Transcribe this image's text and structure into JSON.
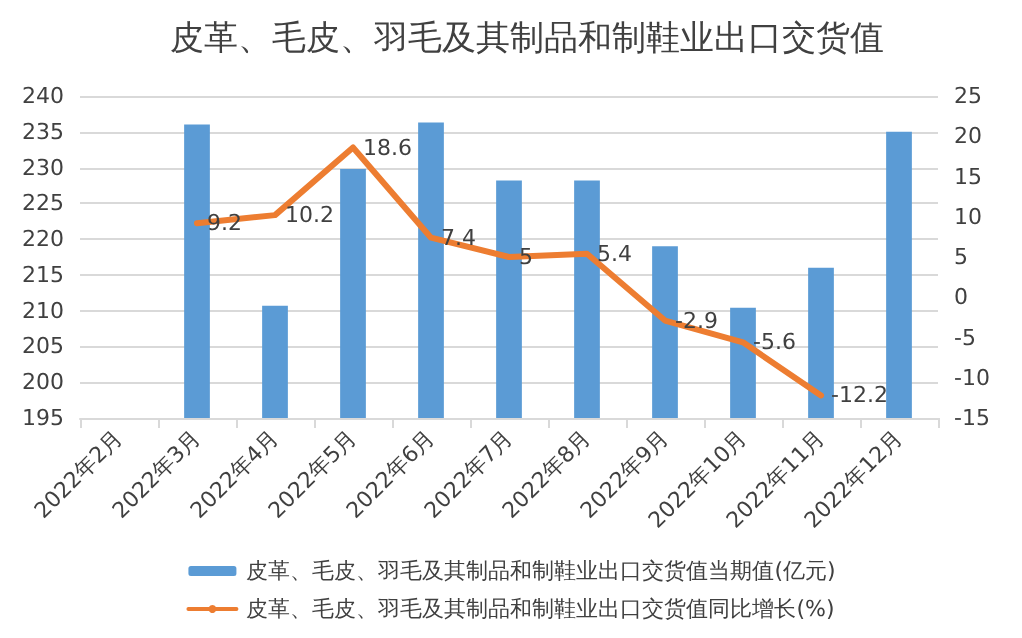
{
  "chart_data": {
    "type": "bar",
    "title": "皮革、毛皮、羽毛及其制品和制鞋业出口交货值",
    "categories": [
      "2022年2月",
      "2022年3月",
      "2022年4月",
      "2022年5月",
      "2022年6月",
      "2022年7月",
      "2022年8月",
      "2022年9月",
      "2022年10月",
      "2022年11月",
      "2022年12月"
    ],
    "series": [
      {
        "name": "皮革、毛皮、羽毛及其制品和制鞋业出口交货值当期值(亿元)",
        "color": "#5b9bd5",
        "values": [
          null,
          236,
          210.7,
          229.8,
          236.3,
          228.2,
          228.2,
          219,
          210.4,
          216,
          235
        ]
      },
      {
        "name": "皮革、毛皮、羽毛及其制品和制鞋业出口交货值同比增长(%)",
        "type": "line",
        "axis": "y2",
        "color": "#ed7d31",
        "data_labels": true,
        "values": [
          null,
          9.2,
          10.2,
          18.6,
          7.4,
          5,
          5.4,
          -2.9,
          -5.6,
          -12.2,
          null
        ]
      }
    ],
    "ylim": [
      195,
      240
    ],
    "yticks": [
      195,
      200,
      205,
      210,
      215,
      220,
      225,
      230,
      235,
      240
    ],
    "y2lim": [
      -15,
      25
    ],
    "y2ticks": [
      -15,
      -10,
      -5,
      0,
      5,
      10,
      15,
      20,
      25
    ],
    "grid": "y",
    "legend": "bottom",
    "marker": "none"
  }
}
